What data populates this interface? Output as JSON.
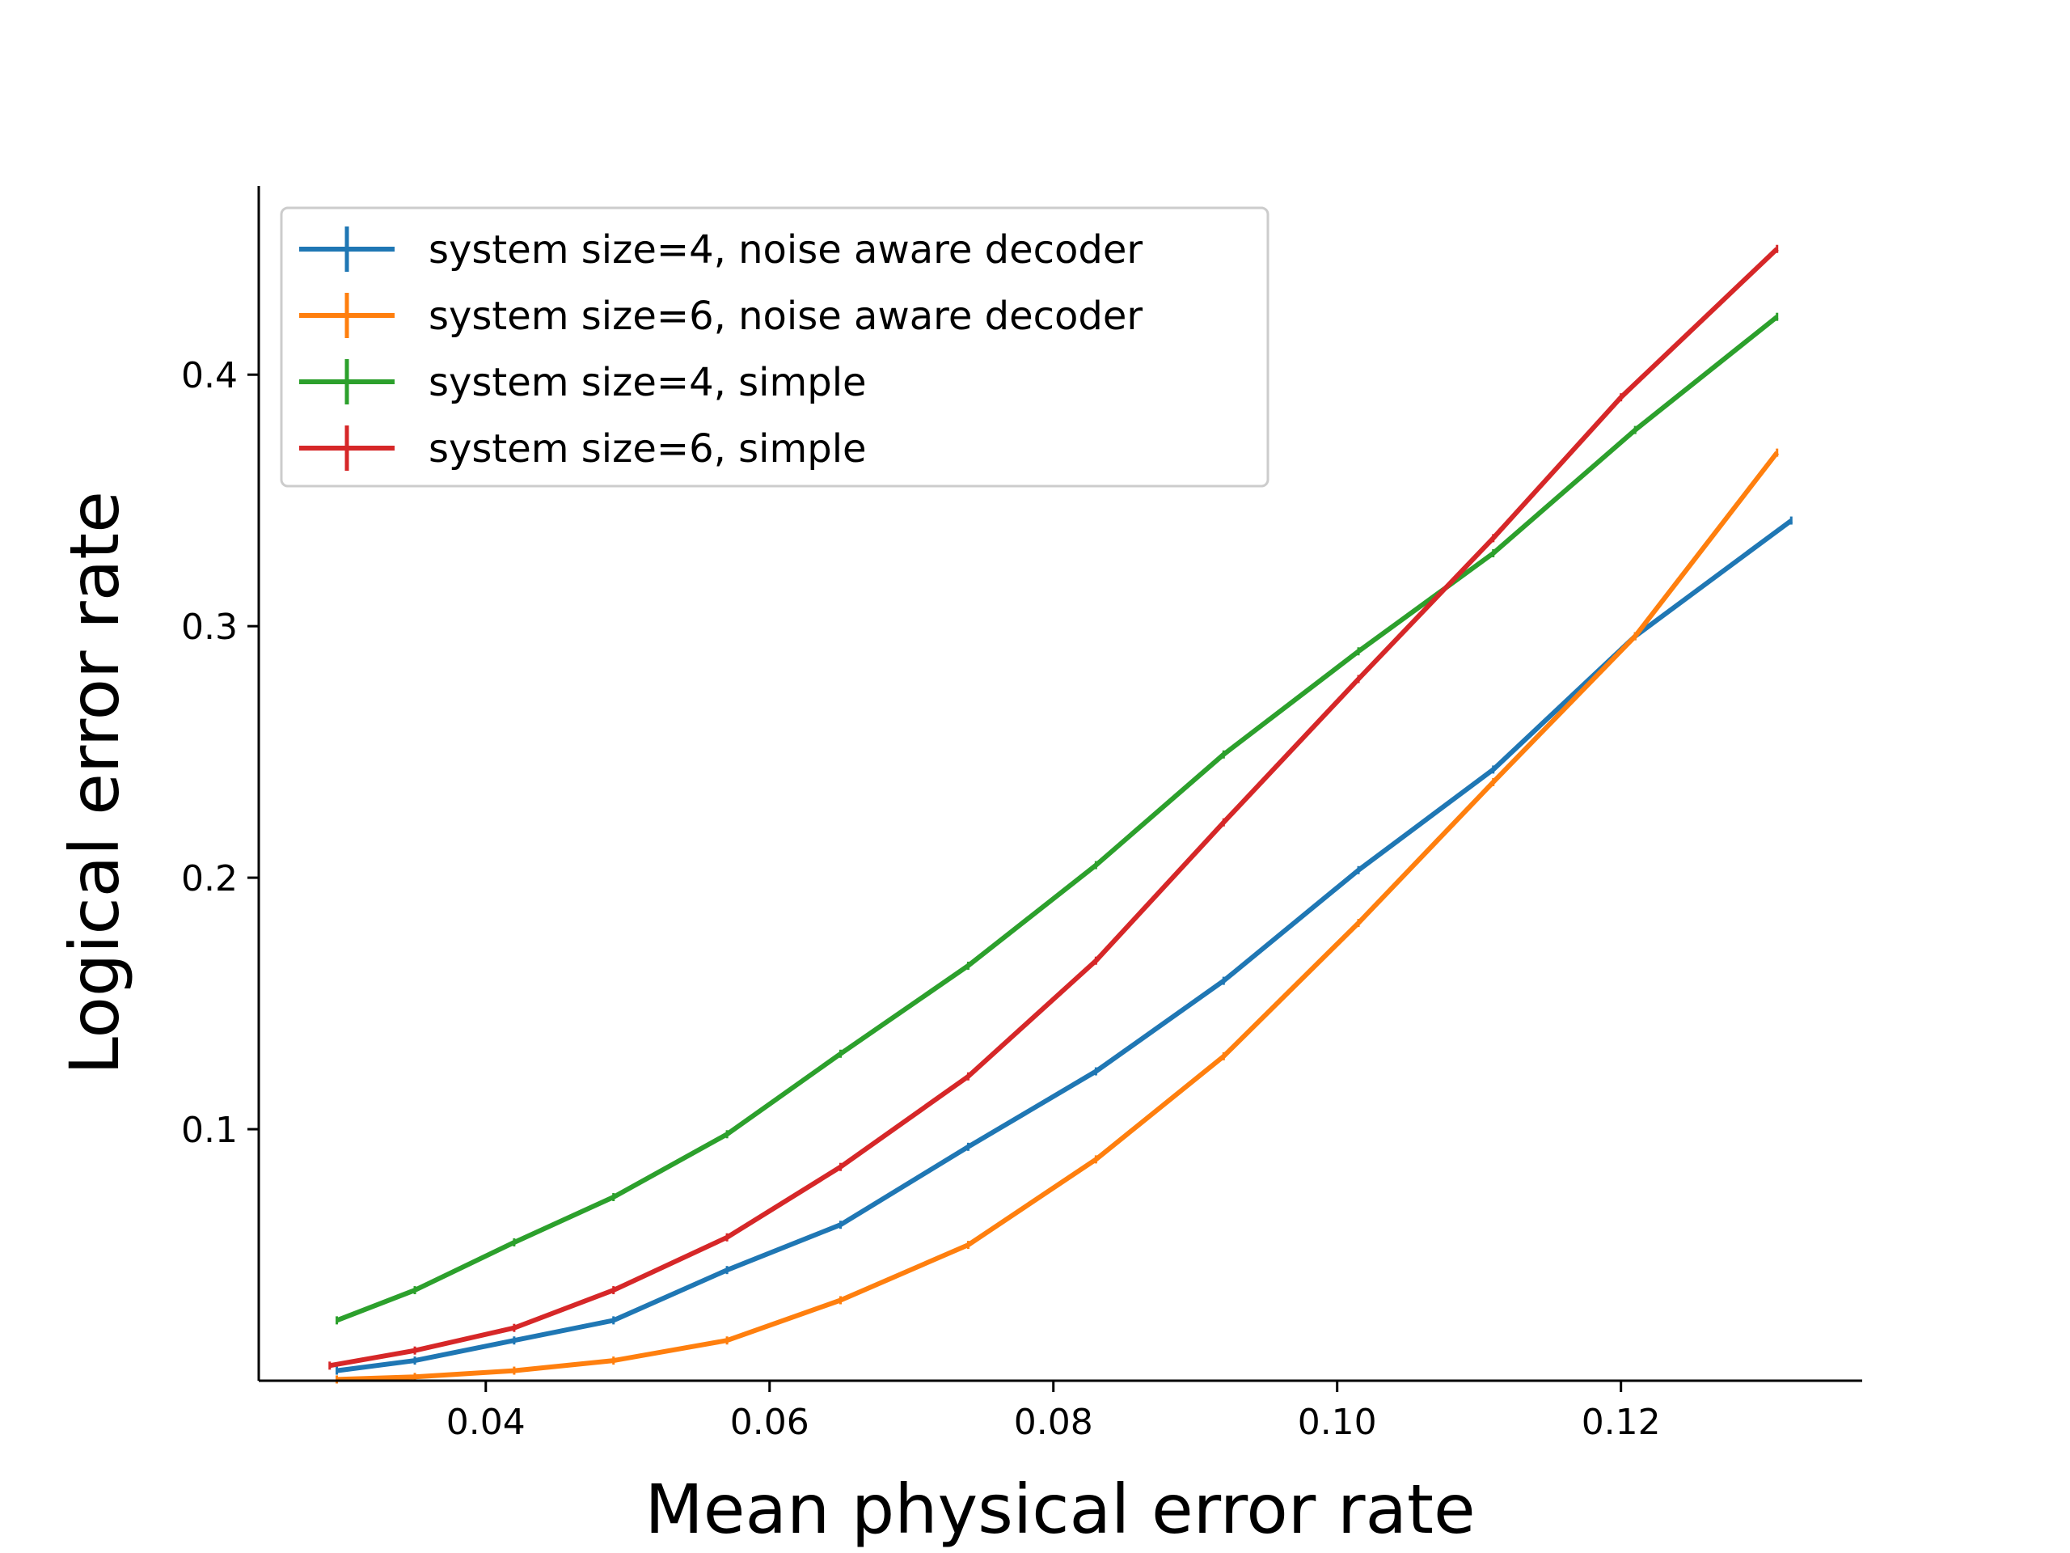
{
  "chart_data": {
    "type": "line",
    "title": "",
    "xlabel": "Mean physical error rate",
    "ylabel": "Logical error rate",
    "xlim": [
      0.024,
      0.137
    ],
    "ylim": [
      0.0,
      0.475
    ],
    "xticks": [
      0.04,
      0.06,
      0.08,
      0.1,
      0.12
    ],
    "xtick_labels": [
      "0.04",
      "0.06",
      "0.08",
      "0.10",
      "0.12"
    ],
    "yticks": [
      0.1,
      0.2,
      0.3,
      0.4
    ],
    "ytick_labels": [
      "0.1",
      "0.2",
      "0.3",
      "0.4"
    ],
    "grid": false,
    "legend_position": "upper-left",
    "series": [
      {
        "name": "system size=4, noise aware decoder",
        "color": "#1f77b4",
        "x": [
          0.0295,
          0.035,
          0.042,
          0.049,
          0.057,
          0.065,
          0.074,
          0.083,
          0.092,
          0.1015,
          0.111,
          0.121,
          0.132
        ],
        "y": [
          0.004,
          0.008,
          0.016,
          0.024,
          0.044,
          0.062,
          0.093,
          0.123,
          0.159,
          0.203,
          0.243,
          0.296,
          0.342
        ]
      },
      {
        "name": "system size=6, noise aware decoder",
        "color": "#ff7f0e",
        "x": [
          0.0295,
          0.035,
          0.042,
          0.049,
          0.057,
          0.065,
          0.074,
          0.083,
          0.092,
          0.1015,
          0.111,
          0.121,
          0.131
        ],
        "y": [
          0.0005,
          0.0015,
          0.004,
          0.008,
          0.016,
          0.032,
          0.054,
          0.088,
          0.129,
          0.182,
          0.238,
          0.296,
          0.369
        ]
      },
      {
        "name": "system size=4, simple",
        "color": "#2ca02c",
        "x": [
          0.0295,
          0.035,
          0.042,
          0.049,
          0.057,
          0.065,
          0.074,
          0.083,
          0.092,
          0.1015,
          0.111,
          0.121,
          0.131
        ],
        "y": [
          0.024,
          0.036,
          0.055,
          0.073,
          0.098,
          0.13,
          0.165,
          0.205,
          0.249,
          0.29,
          0.329,
          0.378,
          0.423
        ]
      },
      {
        "name": "system size=6, simple",
        "color": "#d62728",
        "x": [
          0.029,
          0.035,
          0.042,
          0.049,
          0.057,
          0.065,
          0.074,
          0.083,
          0.092,
          0.1015,
          0.111,
          0.12,
          0.131
        ],
        "y": [
          0.006,
          0.012,
          0.021,
          0.036,
          0.057,
          0.085,
          0.121,
          0.167,
          0.222,
          0.279,
          0.335,
          0.391,
          0.45
        ]
      }
    ]
  }
}
